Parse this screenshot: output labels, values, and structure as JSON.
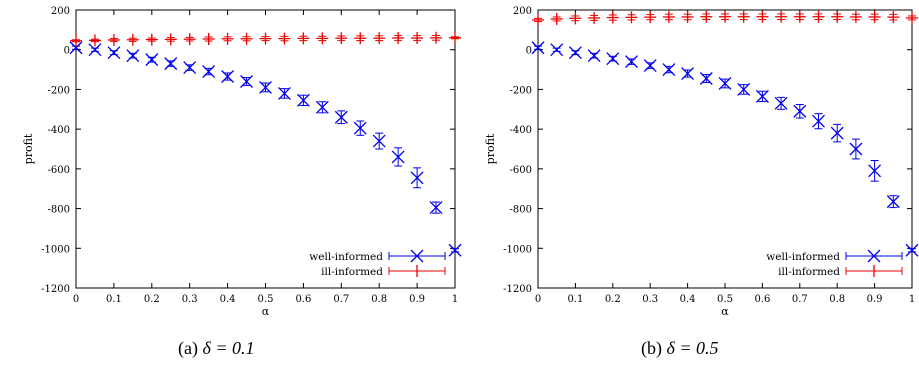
{
  "figure": {
    "captions": [
      {
        "label": "(a)",
        "math": "δ = 0.1"
      },
      {
        "label": "(b)",
        "math": "δ = 0.5"
      }
    ]
  },
  "chart_data": [
    {
      "type": "line",
      "title": "",
      "xlabel": "α",
      "ylabel": "profit",
      "xlim": [
        0,
        1
      ],
      "ylim": [
        -1200,
        200
      ],
      "xticks": [
        "0",
        "0.1",
        "0.2",
        "0.3",
        "0.4",
        "0.5",
        "0.6",
        "0.7",
        "0.8",
        "0.9",
        "1"
      ],
      "yticks": [
        "200",
        "0",
        "-200",
        "-400",
        "-600",
        "-800",
        "-1000",
        "-1200"
      ],
      "grid": false,
      "legend": "bottom-right",
      "x": [
        0,
        0.05,
        0.1,
        0.15,
        0.2,
        0.25,
        0.3,
        0.35,
        0.4,
        0.45,
        0.5,
        0.55,
        0.6,
        0.65,
        0.7,
        0.75,
        0.8,
        0.85,
        0.9,
        0.95,
        1.0
      ],
      "series": [
        {
          "name": "well-informed",
          "color": "#0000ee",
          "marker": "x",
          "values": [
            10,
            0,
            -15,
            -30,
            -50,
            -70,
            -90,
            -110,
            -135,
            -160,
            -190,
            -220,
            -255,
            -290,
            -340,
            -395,
            -460,
            -540,
            -645,
            -795,
            -1010
          ],
          "errors": [
            8,
            8,
            10,
            12,
            12,
            14,
            14,
            16,
            18,
            20,
            22,
            24,
            26,
            28,
            32,
            36,
            40,
            46,
            50,
            28,
            8
          ]
        },
        {
          "name": "ill-informed",
          "color": "#ee0000",
          "marker": "+",
          "values": [
            45,
            47,
            49,
            50,
            51,
            52,
            53,
            54,
            55,
            55,
            56,
            56,
            57,
            57,
            58,
            58,
            58,
            59,
            59,
            60,
            60
          ],
          "errors": [
            5,
            6,
            7,
            8,
            8,
            9,
            9,
            10,
            10,
            10,
            10,
            11,
            11,
            11,
            11,
            12,
            12,
            12,
            12,
            12,
            5
          ]
        }
      ]
    },
    {
      "type": "line",
      "title": "",
      "xlabel": "α",
      "ylabel": "profit",
      "xlim": [
        0,
        1
      ],
      "ylim": [
        -1200,
        200
      ],
      "xticks": [
        "0",
        "0.1",
        "0.2",
        "0.3",
        "0.4",
        "0.5",
        "0.6",
        "0.7",
        "0.8",
        "0.9",
        "1"
      ],
      "yticks": [
        "200",
        "0",
        "-200",
        "-400",
        "-600",
        "-800",
        "-1000",
        "-1200"
      ],
      "grid": false,
      "legend": "bottom-right",
      "x": [
        0,
        0.05,
        0.1,
        0.15,
        0.2,
        0.25,
        0.3,
        0.35,
        0.4,
        0.45,
        0.5,
        0.55,
        0.6,
        0.65,
        0.7,
        0.75,
        0.8,
        0.85,
        0.9,
        0.95,
        1.0
      ],
      "series": [
        {
          "name": "well-informed",
          "color": "#0000ee",
          "marker": "x",
          "values": [
            10,
            0,
            -15,
            -30,
            -45,
            -60,
            -80,
            -100,
            -120,
            -145,
            -170,
            -200,
            -235,
            -270,
            -310,
            -360,
            -420,
            -500,
            -610,
            -765,
            -1010
          ],
          "errors": [
            8,
            8,
            10,
            12,
            12,
            14,
            14,
            16,
            18,
            20,
            22,
            24,
            26,
            30,
            34,
            38,
            44,
            50,
            52,
            30,
            8
          ]
        },
        {
          "name": "ill-informed",
          "color": "#ee0000",
          "marker": "+",
          "values": [
            150,
            155,
            158,
            160,
            162,
            163,
            164,
            165,
            165,
            166,
            166,
            166,
            166,
            166,
            166,
            166,
            166,
            165,
            165,
            164,
            160
          ],
          "errors": [
            8,
            10,
            12,
            12,
            13,
            13,
            13,
            14,
            14,
            14,
            14,
            14,
            14,
            14,
            14,
            14,
            14,
            14,
            14,
            14,
            10
          ]
        }
      ]
    }
  ]
}
